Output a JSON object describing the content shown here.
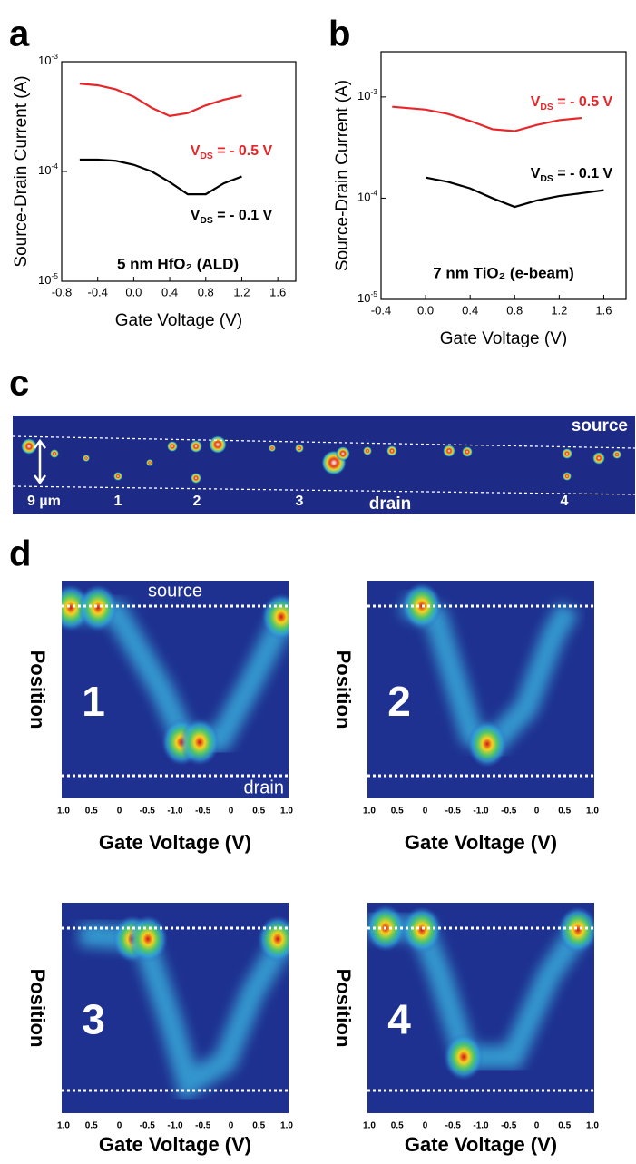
{
  "chart_data": [
    {
      "type": "line",
      "label": "a",
      "xlabel": "Gate Voltage (V)",
      "ylabel": "Source-Drain Current (A)",
      "annotation": "5 nm HfO₂ (ALD)",
      "log_y": true,
      "xlim": [
        -0.8,
        1.8
      ],
      "xticks": [
        -0.8,
        -0.4,
        {
          "value": 0,
          "label": "0.0"
        },
        0.4,
        0.8,
        1.2,
        1.6
      ],
      "ylim": [
        1e-05,
        0.001
      ],
      "yticks": [
        {
          "value": 1e-05,
          "label": "10-5"
        },
        {
          "value": 0.0001,
          "label": "10-4"
        },
        {
          "value": 0.001,
          "label": "10-3"
        }
      ],
      "x": [
        -0.6,
        -0.4,
        -0.2,
        0,
        0.2,
        0.4,
        0.6,
        0.8,
        1.0,
        1.2
      ],
      "series": [
        {
          "name": "VDS = - 0.5 V",
          "color": "#e8262a",
          "values": [
            0.00063,
            0.00061,
            0.00056,
            0.00048,
            0.00038,
            0.00032,
            0.00034,
            0.0004,
            0.00045,
            0.00049
          ]
        },
        {
          "name": "VDS = - 0.1 V",
          "color": "#000000",
          "values": [
            0.000128,
            0.000128,
            0.000125,
            0.000115,
            0.0001,
            8e-05,
            6.2e-05,
            6.2e-05,
            7.8e-05,
            9e-05
          ]
        }
      ]
    },
    {
      "type": "line",
      "label": "b",
      "xlabel": "Gate Voltage (V)",
      "ylabel": "Source-Drain Current (A)",
      "annotation": "7 nm TiO₂ (e-beam)",
      "log_y": true,
      "xlim": [
        -0.4,
        1.8
      ],
      "xticks": [
        -0.4,
        {
          "value": 0,
          "label": "0.0"
        },
        0.4,
        0.8,
        1.2,
        1.6
      ],
      "ylim": [
        1e-05,
        0.0028
      ],
      "yticks": [
        {
          "value": 1e-05,
          "label": "10-5"
        },
        {
          "value": 0.0001,
          "label": "10-4"
        },
        {
          "value": 0.001,
          "label": "10-3"
        }
      ],
      "x": [
        -0.3,
        0,
        0.2,
        0.4,
        0.6,
        0.8,
        1.0,
        1.2,
        1.4,
        1.6
      ],
      "series": [
        {
          "name": "VDS = - 0.5 V",
          "color": "#e8262a",
          "values": [
            0.0008,
            0.00075,
            0.00068,
            0.00058,
            0.00048,
            0.00046,
            0.00053,
            0.00059,
            0.00062,
            null
          ]
        },
        {
          "name": "VDS = - 0.1 V",
          "color": "#000000",
          "values": [
            null,
            0.00016,
            0.000145,
            0.000125,
            0.0001,
            8.2e-05,
            9.5e-05,
            0.000105,
            0.000112,
            0.00012
          ]
        }
      ]
    }
  ],
  "image_panel": {
    "label": "c",
    "source": "source",
    "drain": "drain",
    "scale": "9 µm",
    "markers": [
      "1",
      "2",
      "3",
      "4"
    ]
  },
  "heatmaps": {
    "label": "d",
    "ylabel": "Position",
    "xlabel": "Gate Voltage (V)",
    "panels": [
      {
        "number": "1",
        "source": "source",
        "drain": "drain",
        "xtick_labels": [
          "1.0",
          "0.5",
          "0",
          "-0.5",
          "-1.0",
          "-0.5",
          "0",
          "0.5",
          "1.0"
        ]
      },
      {
        "number": "2",
        "xtick_labels": [
          "1.0",
          "0.5",
          "0",
          "-0.5",
          "-1.0",
          "-0.5",
          "0",
          "0.5",
          "1.0"
        ]
      },
      {
        "number": "3",
        "xtick_labels": [
          "1.0",
          "0.5",
          "0",
          "-0.5",
          "-1.0",
          "-0.5",
          "0",
          "0.5",
          "1.0"
        ]
      },
      {
        "number": "4",
        "xtick_labels": [
          "1.0",
          "0.5",
          "0",
          "-0.5",
          "-1.0",
          "-0.5",
          "0",
          "0.5",
          "1.0"
        ]
      }
    ]
  }
}
